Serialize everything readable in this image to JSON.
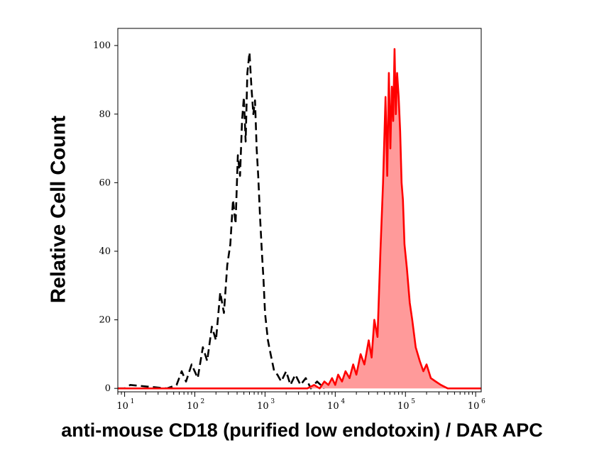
{
  "chart_data": {
    "type": "area",
    "title": "",
    "xlabel": "anti-mouse CD18 (purified low endotoxin) / DAR APC",
    "ylabel": "Relative Cell Count",
    "xscale": "log",
    "xlim": [
      8,
      1200000
    ],
    "ylim": [
      -1,
      105
    ],
    "grid": false,
    "legend": "none",
    "y_ticks": [
      0,
      20,
      40,
      60,
      80,
      100
    ],
    "x_ticks": [
      {
        "value": 10,
        "label": "10",
        "exp": "1"
      },
      {
        "value": 100,
        "label": "10",
        "exp": "2"
      },
      {
        "value": 1000,
        "label": "10",
        "exp": "3"
      },
      {
        "value": 10000,
        "label": "10",
        "exp": "4"
      },
      {
        "value": 100000,
        "label": "10",
        "exp": "5"
      },
      {
        "value": 1000000,
        "label": "10",
        "exp": "6"
      }
    ],
    "series": [
      {
        "style": "dashed",
        "color": "#000000",
        "filled": false,
        "x": [
          8,
          10,
          12,
          40,
          55,
          65,
          75,
          90,
          110,
          130,
          150,
          175,
          200,
          230,
          260,
          290,
          320,
          350,
          380,
          410,
          440,
          470,
          500,
          530,
          560,
          600,
          640,
          680,
          720,
          760,
          800,
          850,
          900,
          950,
          1000,
          1100,
          1200,
          1350,
          1500,
          1700,
          2000,
          2300,
          2700,
          3200,
          3800,
          4500,
          5500,
          7000
        ],
        "y": [
          0,
          0,
          1,
          0,
          1,
          5,
          2,
          7,
          3,
          12,
          8,
          18,
          14,
          28,
          22,
          36,
          42,
          55,
          48,
          68,
          62,
          78,
          85,
          72,
          92,
          98,
          88,
          80,
          84,
          70,
          62,
          50,
          40,
          32,
          22,
          14,
          10,
          5,
          4,
          2,
          5,
          1,
          4,
          1,
          3,
          0,
          2,
          0
        ]
      },
      {
        "style": "solid",
        "color": "#ff0000",
        "fill": "#ff9a9a",
        "filled": true,
        "x": [
          8,
          4000,
          5000,
          6000,
          7000,
          8000,
          9000,
          10000,
          11000,
          12500,
          14000,
          16000,
          18000,
          20000,
          23000,
          26000,
          30000,
          33000,
          36000,
          40000,
          44000,
          48000,
          52000,
          55000,
          58000,
          61000,
          64000,
          67000,
          70000,
          73000,
          76000,
          80000,
          84000,
          88000,
          92000,
          97000,
          105000,
          115000,
          125000,
          140000,
          160000,
          180000,
          200000,
          230000,
          270000,
          320000,
          400000,
          600000,
          1200000
        ],
        "y": [
          0,
          0,
          1,
          0,
          2,
          1,
          3,
          1,
          4,
          2,
          5,
          3,
          7,
          4,
          10,
          7,
          14,
          9,
          20,
          15,
          40,
          60,
          85,
          62,
          92,
          70,
          88,
          78,
          99,
          80,
          92,
          85,
          75,
          60,
          55,
          42,
          35,
          25,
          20,
          12,
          8,
          5,
          7,
          3,
          2,
          1,
          0,
          0,
          0
        ]
      }
    ]
  }
}
